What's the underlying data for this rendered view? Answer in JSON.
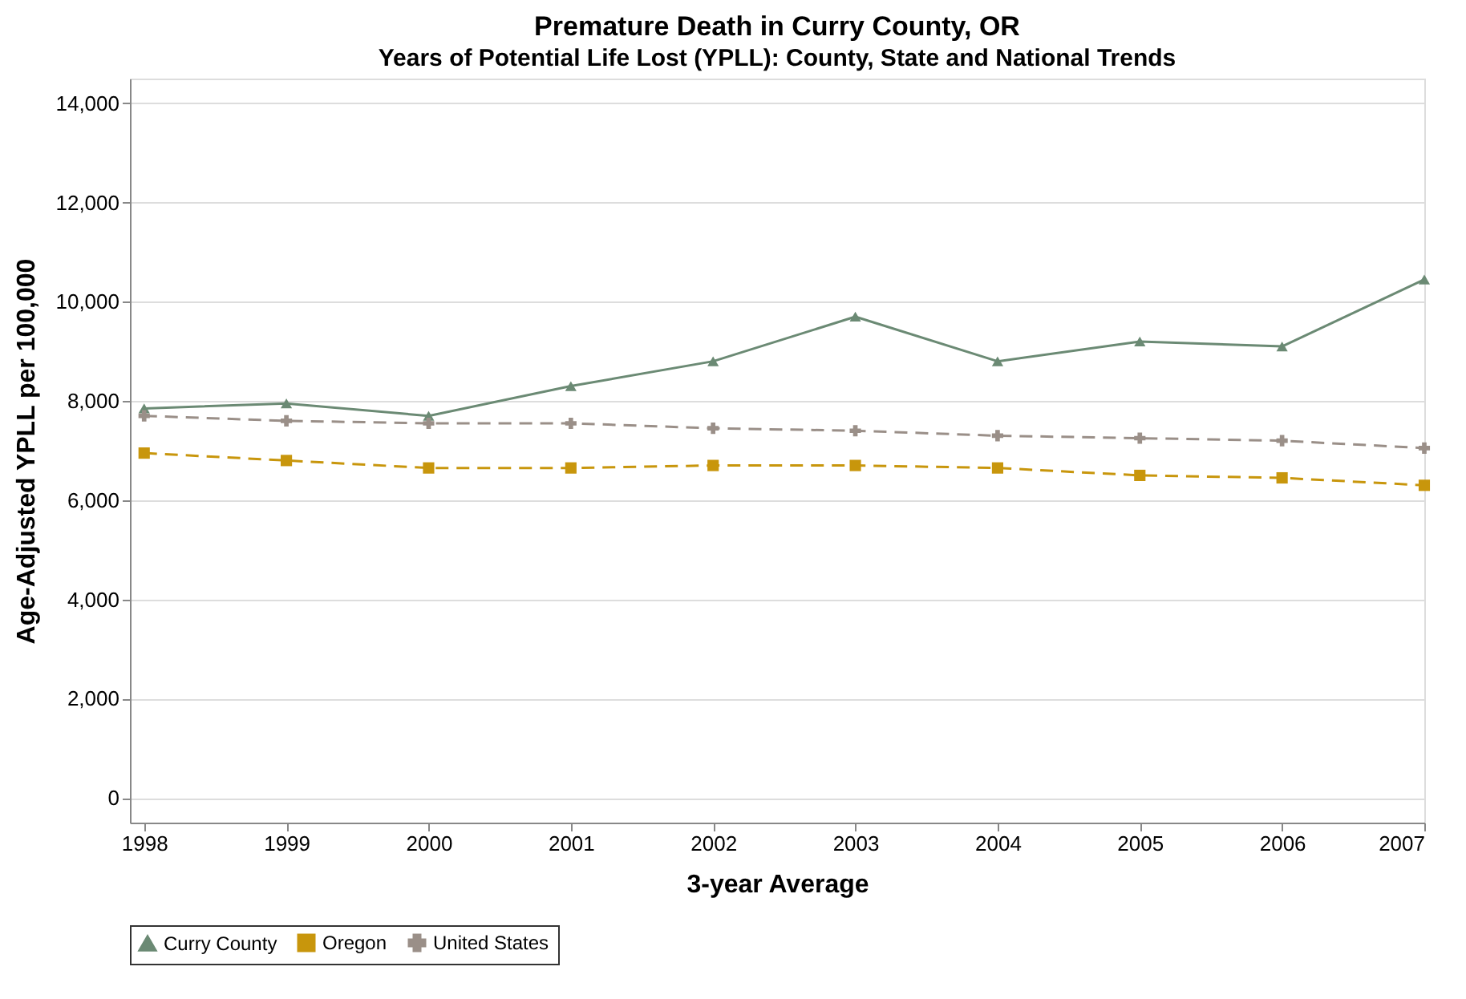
{
  "chart_data": {
    "type": "line",
    "title": "Premature Death in Curry County, OR",
    "subtitle": "Years of Potential Life Lost (YPLL): County, State and National Trends",
    "xlabel": "3-year Average",
    "ylabel": "Age-Adjusted YPLL per 100,000",
    "x": [
      1998,
      1999,
      2000,
      2001,
      2002,
      2003,
      2004,
      2005,
      2006,
      2007
    ],
    "series": [
      {
        "name": "Curry County",
        "color": "#6b8a74",
        "marker": "triangle",
        "line_style": "solid",
        "values": [
          7850,
          7950,
          7700,
          8300,
          8800,
          9700,
          8800,
          9200,
          9100,
          10450
        ]
      },
      {
        "name": "Oregon",
        "color": "#c8960c",
        "marker": "square",
        "line_style": "dashed",
        "values": [
          6950,
          6800,
          6650,
          6650,
          6700,
          6700,
          6650,
          6500,
          6450,
          6300
        ]
      },
      {
        "name": "United States",
        "color": "#9a8f88",
        "marker": "cross",
        "line_style": "dashed",
        "values": [
          7700,
          7600,
          7550,
          7550,
          7450,
          7400,
          7300,
          7250,
          7200,
          7050
        ]
      }
    ],
    "xlim": [
      1997.9,
      2007
    ],
    "xticks": [
      1998,
      1999,
      2000,
      2001,
      2002,
      2003,
      2004,
      2005,
      2006,
      2007
    ],
    "ylim": [
      -500,
      14500
    ],
    "yticks": [
      0,
      {
        "value": 2000,
        "label": "2,000"
      },
      {
        "value": 4000,
        "label": "4,000"
      },
      {
        "value": 6000,
        "label": "6,000"
      },
      {
        "value": 8000,
        "label": "8,000"
      },
      {
        "value": 10000,
        "label": "10,000"
      },
      {
        "value": 12000,
        "label": "12,000"
      },
      {
        "value": 14000,
        "label": "14,000"
      }
    ],
    "grid": "y",
    "legend": "bottom"
  }
}
